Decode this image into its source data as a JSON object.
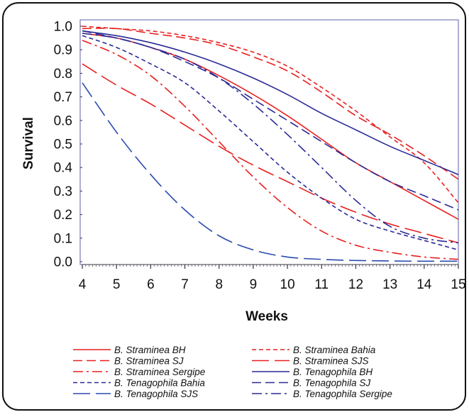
{
  "chart_data": {
    "type": "line",
    "title": "",
    "xlabel": "Weeks",
    "ylabel": "Survival",
    "xlim": [
      4,
      15
    ],
    "ylim": [
      0.0,
      1.0
    ],
    "x_ticks": [
      "4",
      "5",
      "6",
      "7",
      "8",
      "9",
      "10",
      "11",
      "12",
      "13",
      "14",
      "15"
    ],
    "y_ticks": [
      "0.0",
      "0.1",
      "0.2",
      "0.3",
      "0.4",
      "0.5",
      "0.6",
      "0.7",
      "0.8",
      "0.9",
      "1.0"
    ],
    "grid": false,
    "legend_position": "bottom",
    "x": [
      4,
      5,
      6,
      7,
      8,
      9,
      10,
      11,
      12,
      13,
      14,
      15
    ],
    "series": [
      {
        "name": "B. Straminea BH",
        "color": "#e8201f",
        "dash": "solid",
        "values": [
          0.97,
          0.95,
          0.91,
          0.86,
          0.79,
          0.71,
          0.62,
          0.52,
          0.42,
          0.34,
          0.26,
          0.18
        ]
      },
      {
        "name": "B. Straminea Bahia",
        "color": "#e8201f",
        "dash": "short-dash",
        "values": [
          1.0,
          0.99,
          0.98,
          0.96,
          0.93,
          0.89,
          0.83,
          0.74,
          0.64,
          0.53,
          0.42,
          0.25
        ]
      },
      {
        "name": "B. Straminea SJ",
        "color": "#e8201f",
        "dash": "dash",
        "values": [
          0.99,
          0.99,
          0.97,
          0.95,
          0.92,
          0.87,
          0.81,
          0.72,
          0.62,
          0.54,
          0.45,
          0.35
        ]
      },
      {
        "name": "B. Straminea SJS",
        "color": "#e8201f",
        "dash": "long-dash",
        "values": [
          0.84,
          0.75,
          0.67,
          0.58,
          0.49,
          0.41,
          0.34,
          0.27,
          0.21,
          0.16,
          0.12,
          0.08
        ]
      },
      {
        "name": "B. Straminea Sergipe",
        "color": "#e8201f",
        "dash": "dash-dot",
        "values": [
          0.94,
          0.88,
          0.79,
          0.66,
          0.51,
          0.36,
          0.23,
          0.13,
          0.07,
          0.04,
          0.02,
          0.01
        ]
      },
      {
        "name": "B. Tenagophila BH",
        "color": "#2a2a96",
        "dash": "solid",
        "values": [
          0.98,
          0.96,
          0.93,
          0.89,
          0.84,
          0.78,
          0.71,
          0.63,
          0.56,
          0.49,
          0.43,
          0.37
        ]
      },
      {
        "name": "B. Tenagophila Bahia",
        "color": "#2a2a96",
        "dash": "short-dash",
        "values": [
          0.96,
          0.91,
          0.84,
          0.76,
          0.64,
          0.51,
          0.38,
          0.27,
          0.18,
          0.13,
          0.09,
          0.05
        ]
      },
      {
        "name": "B. Tenagophila SJ",
        "color": "#2a2a96",
        "dash": "dash",
        "values": [
          0.98,
          0.95,
          0.91,
          0.85,
          0.78,
          0.69,
          0.6,
          0.51,
          0.42,
          0.34,
          0.28,
          0.22
        ]
      },
      {
        "name": "B. Tenagophila SJS",
        "color": "#2a4ab0",
        "dash": "long-dash",
        "values": [
          0.76,
          0.55,
          0.37,
          0.22,
          0.11,
          0.05,
          0.02,
          0.01,
          0.005,
          0.003,
          0.002,
          0.002
        ]
      },
      {
        "name": "B. Tenagophila Sergipe",
        "color": "#2a2a96",
        "dash": "dash-dot",
        "values": [
          0.97,
          0.95,
          0.91,
          0.86,
          0.78,
          0.67,
          0.54,
          0.4,
          0.26,
          0.15,
          0.1,
          0.08
        ]
      }
    ]
  }
}
